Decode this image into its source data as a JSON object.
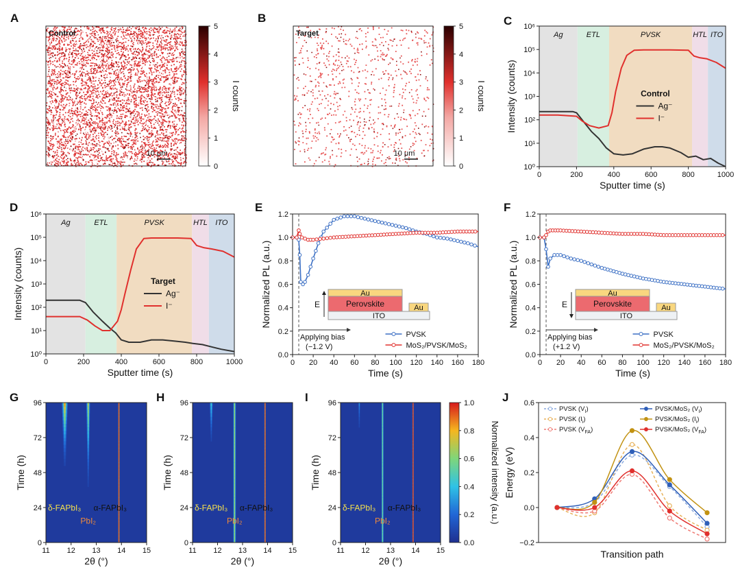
{
  "chart_data": [
    {
      "id": "A",
      "panel_label": "A",
      "type": "heatmap",
      "inset_label": "Control",
      "scalebar": "10 μm",
      "colorbar": {
        "label": "I counts",
        "ticks": [
          "0",
          "1",
          "2",
          "3",
          "4",
          "5"
        ],
        "min": 0,
        "max": 5
      },
      "density": 0.85
    },
    {
      "id": "B",
      "panel_label": "B",
      "type": "heatmap",
      "inset_label": "Target",
      "scalebar": "10 μm",
      "colorbar": {
        "label": "I counts",
        "ticks": [
          "0",
          "1",
          "2",
          "3",
          "4",
          "5"
        ],
        "min": 0,
        "max": 5
      },
      "density": 0.15
    },
    {
      "id": "C",
      "panel_label": "C",
      "type": "line",
      "xlabel": "Sputter time (s)",
      "ylabel": "Intensity (counts)",
      "xlim": [
        0,
        1000
      ],
      "ylim_log": [
        0,
        6
      ],
      "xticks": [
        "0",
        "200",
        "400",
        "600",
        "800",
        "1000"
      ],
      "yticks": [
        "10⁰",
        "10¹",
        "10²",
        "10³",
        "10⁴",
        "10⁵",
        "10⁶"
      ],
      "regions": [
        {
          "name": "Ag",
          "from": 0,
          "to": 205,
          "color": "#e3e3e3"
        },
        {
          "name": "ETL",
          "from": 205,
          "to": 375,
          "color": "#d7efe0"
        },
        {
          "name": "PVSK",
          "from": 375,
          "to": 820,
          "color": "#f1dcc1"
        },
        {
          "name": "HTL",
          "from": 820,
          "to": 905,
          "color": "#f0dde8"
        },
        {
          "name": "ITO",
          "from": 905,
          "to": 1000,
          "color": "#cfdcea"
        }
      ],
      "legend_title": "Control",
      "series": [
        {
          "name": "Ag⁻",
          "color": "#333333",
          "x": [
            0,
            100,
            180,
            200,
            240,
            280,
            320,
            360,
            400,
            450,
            500,
            560,
            620,
            660,
            700,
            760,
            800,
            840,
            880,
            920,
            960,
            1000
          ],
          "log_y": [
            2.35,
            2.35,
            2.35,
            2.3,
            1.9,
            1.5,
            1.2,
            0.8,
            0.55,
            0.5,
            0.55,
            0.75,
            0.85,
            0.85,
            0.8,
            0.6,
            0.4,
            0.45,
            0.3,
            0.35,
            0.15,
            0.0
          ]
        },
        {
          "name": "I⁻",
          "color": "#e0302d",
          "x": [
            0,
            100,
            200,
            230,
            270,
            320,
            370,
            390,
            410,
            440,
            470,
            510,
            560,
            700,
            800,
            830,
            860,
            900,
            950,
            1000
          ],
          "log_y": [
            2.2,
            2.2,
            2.15,
            1.95,
            1.75,
            1.65,
            1.75,
            2.3,
            3.2,
            4.2,
            4.75,
            4.97,
            4.98,
            4.98,
            4.97,
            4.72,
            4.65,
            4.6,
            4.45,
            4.2
          ]
        }
      ]
    },
    {
      "id": "D",
      "panel_label": "D",
      "type": "line",
      "xlabel": "Sputter time (s)",
      "ylabel": "Intensity (counts)",
      "xlim": [
        0,
        1000
      ],
      "ylim_log": [
        0,
        6
      ],
      "xticks": [
        "0",
        "200",
        "400",
        "600",
        "800",
        "1000"
      ],
      "yticks": [
        "10⁰",
        "10¹",
        "10²",
        "10³",
        "10⁴",
        "10⁵",
        "10⁶"
      ],
      "regions": [
        {
          "name": "Ag",
          "from": 0,
          "to": 210,
          "color": "#e3e3e3"
        },
        {
          "name": "ETL",
          "from": 210,
          "to": 375,
          "color": "#d7efe0"
        },
        {
          "name": "PVSK",
          "from": 375,
          "to": 775,
          "color": "#f1dcc1"
        },
        {
          "name": "HTL",
          "from": 775,
          "to": 865,
          "color": "#f0dde8"
        },
        {
          "name": "ITO",
          "from": 865,
          "to": 1000,
          "color": "#cfdcea"
        }
      ],
      "legend_title": "Target",
      "series": [
        {
          "name": "Ag⁻",
          "color": "#333333",
          "x": [
            0,
            100,
            180,
            210,
            250,
            300,
            340,
            370,
            400,
            440,
            500,
            560,
            620,
            680,
            740,
            780,
            830,
            880,
            930,
            1000
          ],
          "log_y": [
            2.3,
            2.3,
            2.3,
            2.2,
            1.8,
            1.4,
            1.1,
            0.9,
            0.6,
            0.5,
            0.5,
            0.6,
            0.6,
            0.55,
            0.5,
            0.45,
            0.4,
            0.3,
            0.2,
            0.1
          ]
        },
        {
          "name": "I⁻",
          "color": "#e0302d",
          "x": [
            0,
            100,
            180,
            220,
            260,
            300,
            340,
            380,
            400,
            420,
            450,
            480,
            520,
            560,
            700,
            770,
            800,
            840,
            880,
            940,
            1000
          ],
          "log_y": [
            1.6,
            1.6,
            1.6,
            1.45,
            1.2,
            1.0,
            1.0,
            1.4,
            1.9,
            2.6,
            3.6,
            4.5,
            4.95,
            4.97,
            4.97,
            4.95,
            4.65,
            4.55,
            4.5,
            4.4,
            4.15
          ]
        }
      ]
    },
    {
      "id": "E",
      "panel_label": "E",
      "type": "line",
      "xlabel": "Time (s)",
      "ylabel": "Normalized PL (a.u.)",
      "xlim": [
        0,
        180
      ],
      "ylim": [
        0,
        1.2
      ],
      "xticks": [
        "0",
        "20",
        "40",
        "60",
        "80",
        "100",
        "120",
        "140",
        "160",
        "180"
      ],
      "yticks": [
        "0.0",
        "0.2",
        "0.4",
        "0.6",
        "0.8",
        "1.0",
        "1.2"
      ],
      "bias_text": "Applying bias",
      "bias_value": "(−1.2 V)",
      "bias_time": 6,
      "inset": {
        "top": "Au",
        "middle": "Perovskite",
        "side": "Au",
        "bottom": "ITO",
        "field": "E",
        "field_dir": "up"
      },
      "series": [
        {
          "name": "PVSK",
          "color": "#3b6fc4",
          "x": [
            0,
            4,
            6,
            7,
            8,
            10,
            12,
            15,
            20,
            25,
            30,
            40,
            50,
            60,
            70,
            80,
            90,
            100,
            110,
            120,
            130,
            140,
            150,
            160,
            170,
            180
          ],
          "y": [
            1.0,
            1.0,
            0.98,
            0.85,
            0.62,
            0.6,
            0.62,
            0.68,
            0.82,
            0.95,
            1.05,
            1.15,
            1.18,
            1.18,
            1.16,
            1.14,
            1.12,
            1.1,
            1.08,
            1.05,
            1.03,
            1.0,
            0.99,
            0.97,
            0.95,
            0.92
          ]
        },
        {
          "name": "MoS₂/PVSK/MoS₂",
          "color": "#e0302d",
          "x": [
            0,
            4,
            6,
            7,
            9,
            12,
            15,
            20,
            30,
            40,
            60,
            80,
            100,
            120,
            140,
            160,
            180
          ],
          "y": [
            1.0,
            1.0,
            1.06,
            1.03,
            1.0,
            0.99,
            0.98,
            0.98,
            0.99,
            1.0,
            1.01,
            1.02,
            1.03,
            1.04,
            1.04,
            1.05,
            1.05
          ]
        }
      ]
    },
    {
      "id": "F",
      "panel_label": "F",
      "type": "line",
      "xlabel": "Time (s)",
      "ylabel": "Normalized PL (a.u.)",
      "xlim": [
        0,
        180
      ],
      "ylim": [
        0,
        1.2
      ],
      "xticks": [
        "0",
        "20",
        "40",
        "60",
        "80",
        "100",
        "120",
        "140",
        "160",
        "180"
      ],
      "yticks": [
        "0.0",
        "0.2",
        "0.4",
        "0.6",
        "0.8",
        "1.0",
        "1.2"
      ],
      "bias_text": "Applying bias",
      "bias_value": "(+1.2 V)",
      "bias_time": 6,
      "inset": {
        "top": "Au",
        "middle": "Perovskite",
        "side": "Au",
        "bottom": "ITO",
        "field": "E",
        "field_dir": "down"
      },
      "series": [
        {
          "name": "PVSK",
          "color": "#3b6fc4",
          "x": [
            0,
            4,
            6,
            8,
            10,
            14,
            20,
            30,
            40,
            50,
            60,
            80,
            100,
            120,
            140,
            160,
            180
          ],
          "y": [
            1.0,
            1.0,
            0.9,
            0.75,
            0.82,
            0.85,
            0.85,
            0.82,
            0.8,
            0.77,
            0.74,
            0.69,
            0.65,
            0.62,
            0.6,
            0.58,
            0.56
          ]
        },
        {
          "name": "MoS₂/PVSK/MoS₂",
          "color": "#e0302d",
          "x": [
            0,
            4,
            6,
            8,
            10,
            15,
            20,
            40,
            60,
            80,
            100,
            120,
            140,
            160,
            180
          ],
          "y": [
            1.0,
            1.0,
            1.02,
            1.05,
            1.06,
            1.06,
            1.06,
            1.05,
            1.04,
            1.03,
            1.03,
            1.02,
            1.02,
            1.02,
            1.02
          ]
        }
      ]
    },
    {
      "id": "G",
      "panel_label": "G",
      "type": "heatmap",
      "xlabel": "2θ (°)",
      "ylabel": "Time (h)",
      "xlim": [
        11,
        15
      ],
      "ylim": [
        0,
        96
      ],
      "xticks": [
        "11",
        "12",
        "13",
        "14",
        "15"
      ],
      "yticks": [
        "0",
        "24",
        "48",
        "72",
        "96"
      ],
      "peaks": [
        {
          "pos": 11.75,
          "start": 55,
          "peak": 0.75,
          "width": 0.22
        },
        {
          "pos": 12.68,
          "start": 40,
          "peak": 0.65,
          "width": 0.14
        },
        {
          "pos": 13.9,
          "start": 0,
          "peak": 0.85,
          "width": 0.055
        }
      ],
      "labels": {
        "delta": "δ-FAPbI₃",
        "pbi": "PbI₂",
        "alpha": "α-FAPbI₃"
      }
    },
    {
      "id": "H",
      "panel_label": "H",
      "type": "heatmap",
      "xlabel": "2θ (°)",
      "ylabel": "Time (h)",
      "xlim": [
        11,
        15
      ],
      "ylim": [
        0,
        96
      ],
      "xticks": [
        "11",
        "12",
        "13",
        "14",
        "15"
      ],
      "yticks": [
        "0",
        "24",
        "48",
        "72",
        "96"
      ],
      "peaks": [
        {
          "pos": 11.75,
          "start": 70,
          "peak": 0.35,
          "width": 0.12
        },
        {
          "pos": 12.68,
          "start": 0,
          "peak": 0.55,
          "width": 0.1
        },
        {
          "pos": 13.9,
          "start": 0,
          "peak": 0.85,
          "width": 0.055
        }
      ],
      "labels": {
        "delta": "δ-FAPbI₃",
        "pbi": "PbI₂",
        "alpha": "α-FAPbI₃"
      }
    },
    {
      "id": "I",
      "panel_label": "I",
      "type": "heatmap",
      "xlabel": "2θ (°)",
      "ylabel": "Time (h)",
      "xlim": [
        11,
        15
      ],
      "ylim": [
        0,
        96
      ],
      "xticks": [
        "11",
        "12",
        "13",
        "14",
        "15"
      ],
      "yticks": [
        "0",
        "24",
        "48",
        "72",
        "96"
      ],
      "peaks": [
        {
          "pos": 11.75,
          "start": 80,
          "peak": 0.2,
          "width": 0.05
        },
        {
          "pos": 12.68,
          "start": 0,
          "peak": 0.45,
          "width": 0.08
        },
        {
          "pos": 13.9,
          "start": 0,
          "peak": 0.9,
          "width": 0.06
        }
      ],
      "labels": {
        "delta": "δ-FAPbI₃",
        "pbi": "PbI₂",
        "alpha": "α-FAPbI₃"
      },
      "colorbar": {
        "label": "Normalized intensity (a.u.)",
        "ticks": [
          "0.0",
          "0.2",
          "0.4",
          "0.6",
          "0.8",
          "1.0"
        ],
        "min": 0,
        "max": 1
      }
    },
    {
      "id": "J",
      "panel_label": "J",
      "type": "line",
      "xlabel": "Transition path",
      "ylabel": "Energy (eV)",
      "ylim": [
        -0.2,
        0.6
      ],
      "yticks": [
        "−0.2",
        "0.0",
        "0.2",
        "0.4",
        "0.6"
      ],
      "points_x": [
        0,
        1,
        2,
        3,
        4
      ],
      "series": [
        {
          "name": "PVSK (V",
          "sub": "I",
          "tail": ")",
          "color": "#8aa9dd",
          "dashed": true,
          "y": [
            0.0,
            0.03,
            0.3,
            0.12,
            -0.11
          ]
        },
        {
          "name": "PVSK (I",
          "sub": "i",
          "tail": ")",
          "color": "#e8b25a",
          "dashed": true,
          "y": [
            0.0,
            -0.03,
            0.36,
            0.01,
            -0.13
          ]
        },
        {
          "name": "PVSK (V",
          "sub": "FA",
          "tail": ")",
          "color": "#ef7b75",
          "dashed": true,
          "y": [
            0.0,
            -0.02,
            0.19,
            -0.06,
            -0.18
          ]
        },
        {
          "name": "PVSK/MoS₂ (V",
          "sub": "I",
          "tail": ")",
          "color": "#2f5fb8",
          "dashed": false,
          "y": [
            0.0,
            0.05,
            0.32,
            0.13,
            -0.09
          ]
        },
        {
          "name": "PVSK/MoS₂ (I",
          "sub": "i",
          "tail": ")",
          "color": "#c29212",
          "dashed": false,
          "y": [
            0.0,
            0.03,
            0.44,
            0.16,
            -0.03
          ]
        },
        {
          "name": "PVSK/MoS₂ (V",
          "sub": "FA",
          "tail": ")",
          "color": "#e0302d",
          "dashed": false,
          "y": [
            0.0,
            0.0,
            0.21,
            -0.02,
            -0.15
          ]
        }
      ]
    }
  ]
}
